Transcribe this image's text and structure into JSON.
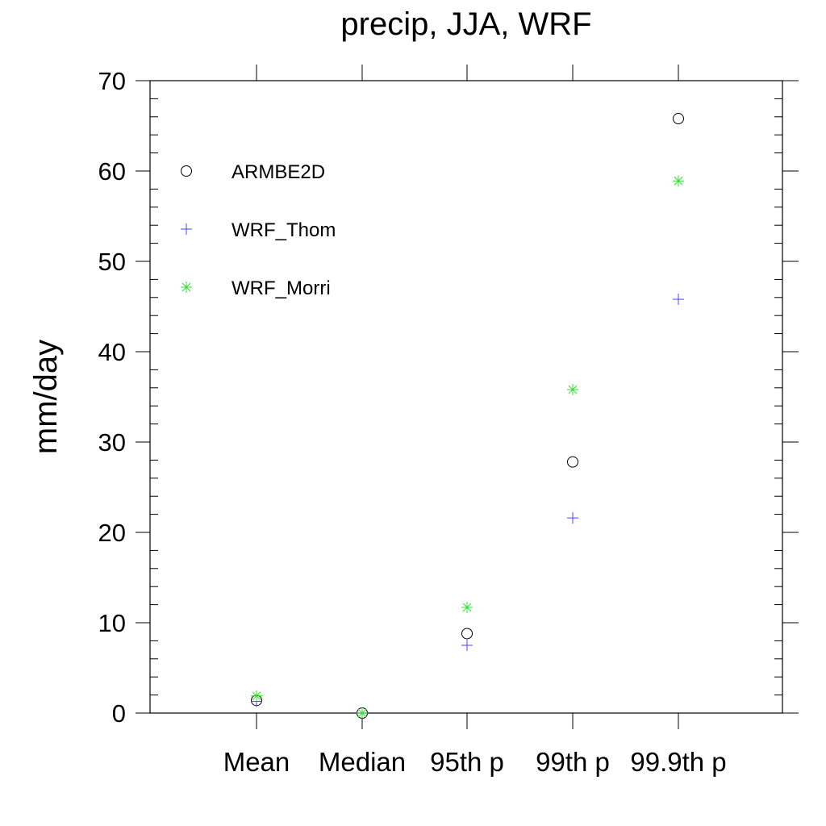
{
  "chart_data": {
    "type": "scatter",
    "title": "precip, JJA, WRF",
    "xlabel": "",
    "ylabel": "mm/day",
    "categories": [
      "Mean",
      "Median",
      "95th p",
      "99th p",
      "99.9th p"
    ],
    "ylim": [
      0,
      70
    ],
    "yticks": [
      0,
      10,
      20,
      30,
      40,
      50,
      60,
      70
    ],
    "y_minor_step": 2,
    "grid": false,
    "legend_position": "top-left",
    "series": [
      {
        "name": "ARMBE2D",
        "marker": "circle",
        "color": "#000000",
        "values": [
          1.4,
          0.0,
          8.8,
          27.8,
          65.8
        ]
      },
      {
        "name": "WRF_Thom",
        "marker": "plus",
        "color": "#4444ff",
        "values": [
          1.3,
          0.0,
          7.5,
          21.6,
          45.8
        ]
      },
      {
        "name": "WRF_Morri",
        "marker": "asterisk",
        "color": "#33dd33",
        "values": [
          1.9,
          0.0,
          11.7,
          35.8,
          58.9
        ]
      }
    ]
  }
}
